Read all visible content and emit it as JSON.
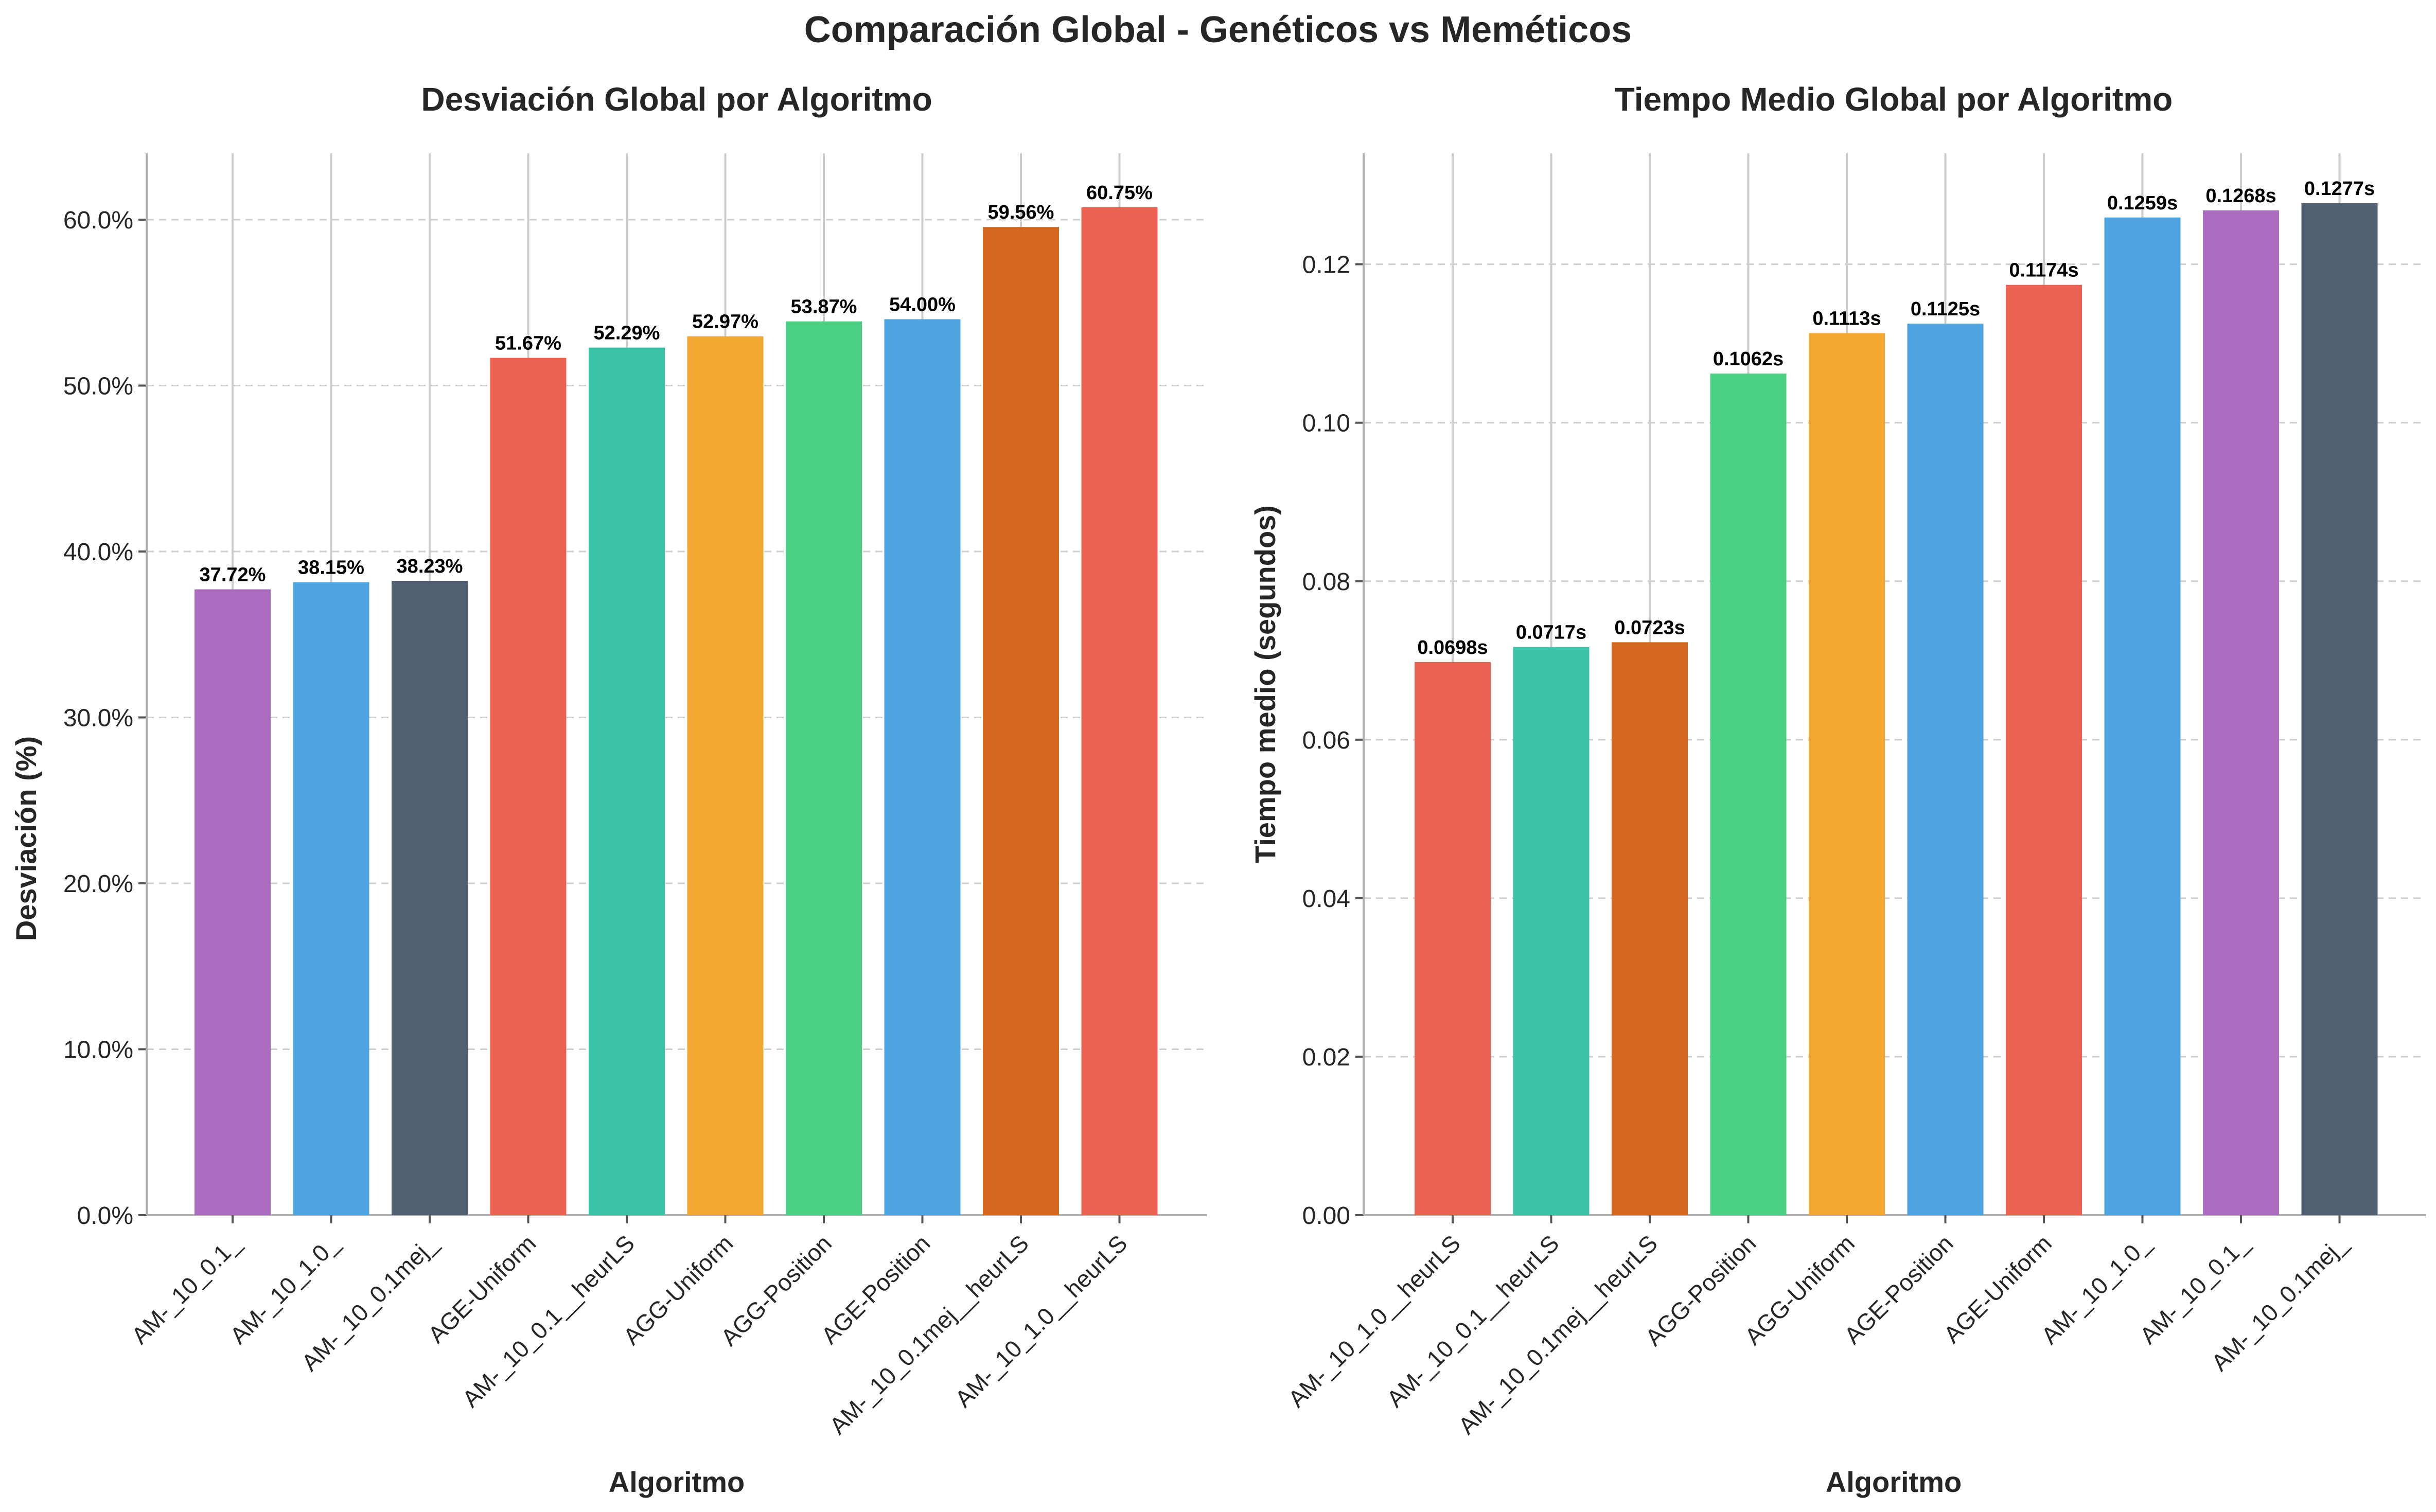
{
  "suptitle": "Comparación Global - Genéticos vs Meméticos",
  "chart_data": [
    {
      "type": "bar",
      "title": "Desviación Global por Algoritmo",
      "xlabel": "Algoritmo",
      "ylabel": "Desviación (%)",
      "ylim": [
        0,
        64
      ],
      "yticks": [
        0,
        10,
        20,
        30,
        40,
        50,
        60
      ],
      "ytick_labels": [
        "0.0%",
        "10.0%",
        "20.0%",
        "30.0%",
        "40.0%",
        "50.0%",
        "60.0%"
      ],
      "grid": "y dashed, x solid",
      "categories": [
        "AM-_10_0.1_",
        "AM-_10_1.0_",
        "AM-_10_0.1mej_",
        "AGE-Uniform",
        "AM-_10_0.1__heurLS",
        "AGG-Uniform",
        "AGG-Position",
        "AGE-Position",
        "AM-_10_0.1mej__heurLS",
        "AM-_10_1.0__heurLS"
      ],
      "values": [
        37.72,
        38.15,
        38.23,
        51.67,
        52.29,
        52.97,
        53.87,
        54.0,
        59.56,
        60.75
      ],
      "value_labels": [
        "37.72%",
        "38.15%",
        "38.23%",
        "51.67%",
        "52.29%",
        "52.97%",
        "53.87%",
        "54.00%",
        "59.56%",
        "60.75%"
      ],
      "colors": [
        "#ab6bbf",
        "#4ea4df",
        "#505f72",
        "#ec6251",
        "#3cc4aa",
        "#f2a733",
        "#4bd084",
        "#4ea4df",
        "#d5691f",
        "#ec6251"
      ]
    },
    {
      "type": "bar",
      "title": "Tiempo Medio Global por Algoritmo",
      "xlabel": "Algoritmo",
      "ylabel": "Tiempo medio (segundos)",
      "ylim": [
        0,
        0.134
      ],
      "yticks": [
        0,
        0.02,
        0.04,
        0.06,
        0.08,
        0.1,
        0.12
      ],
      "ytick_labels": [
        "0.00",
        "0.02",
        "0.04",
        "0.06",
        "0.08",
        "0.10",
        "0.12"
      ],
      "grid": "y dashed, x solid",
      "categories": [
        "AM-_10_1.0__heurLS",
        "AM-_10_0.1__heurLS",
        "AM-_10_0.1mej__heurLS",
        "AGG-Position",
        "AGG-Uniform",
        "AGE-Position",
        "AGE-Uniform",
        "AM-_10_1.0_",
        "AM-_10_0.1_",
        "AM-_10_0.1mej_"
      ],
      "values": [
        0.0698,
        0.0717,
        0.0723,
        0.1062,
        0.1113,
        0.1125,
        0.1174,
        0.1259,
        0.1268,
        0.1277
      ],
      "value_labels": [
        "0.0698s",
        "0.0717s",
        "0.0723s",
        "0.1062s",
        "0.1113s",
        "0.1125s",
        "0.1174s",
        "0.1259s",
        "0.1268s",
        "0.1277s"
      ],
      "colors": [
        "#ec6251",
        "#3cc4aa",
        "#d5691f",
        "#4bd084",
        "#f2a733",
        "#4ea4df",
        "#ec6251",
        "#4ea4df",
        "#ab6bbf",
        "#505f72"
      ]
    }
  ]
}
